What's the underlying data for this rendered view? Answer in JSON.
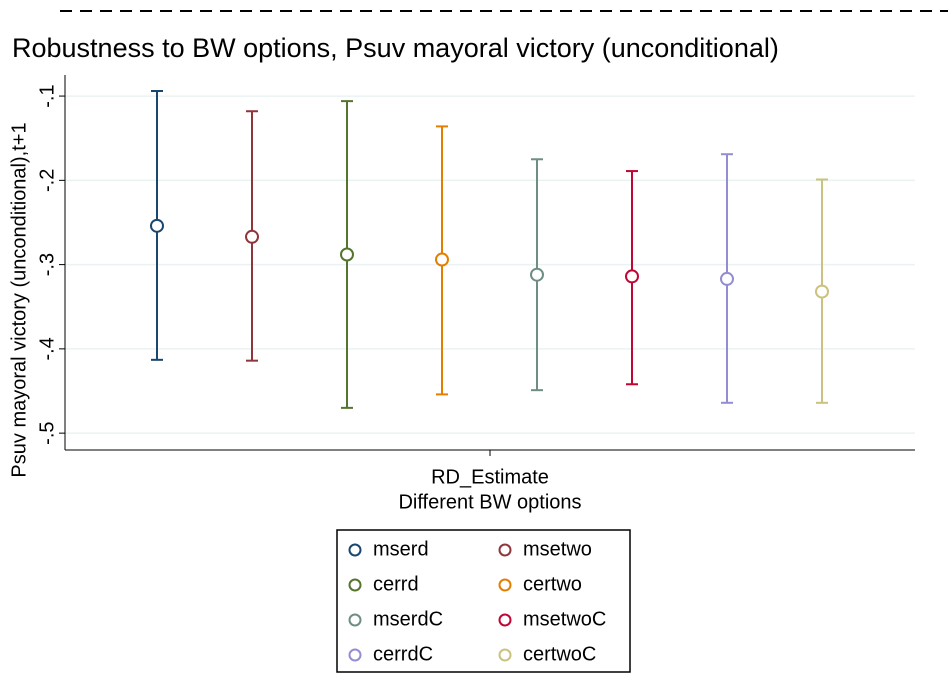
{
  "chart_data": {
    "type": "errorbar",
    "title": "Robustness to BW options, Psuv mayoral victory (unconditional)",
    "ylabel": "Psuv mayoral victory (unconditional),t+1",
    "xlabel": "Different BW options",
    "categories": [
      "RD_Estimate"
    ],
    "ylim": [
      -0.52,
      -0.075
    ],
    "yticks": [
      {
        "value": -0.1,
        "label": "-.1"
      },
      {
        "value": -0.2,
        "label": "-.2"
      },
      {
        "value": -0.3,
        "label": "-.3"
      },
      {
        "value": -0.4,
        "label": "-.4"
      },
      {
        "value": -0.5,
        "label": "-.5"
      }
    ],
    "grid": true,
    "series": [
      {
        "name": "mserd",
        "color": "#1a476f",
        "values": [
          -0.254
        ],
        "lower": [
          -0.413
        ],
        "upper": [
          -0.094
        ]
      },
      {
        "name": "msetwo",
        "color": "#90353b",
        "values": [
          -0.267
        ],
        "lower": [
          -0.414
        ],
        "upper": [
          -0.118
        ]
      },
      {
        "name": "cerrd",
        "color": "#55752f",
        "values": [
          -0.288
        ],
        "lower": [
          -0.47
        ],
        "upper": [
          -0.106
        ]
      },
      {
        "name": "certwo",
        "color": "#e37e00",
        "values": [
          -0.294
        ],
        "lower": [
          -0.454
        ],
        "upper": [
          -0.136
        ]
      },
      {
        "name": "mserdC",
        "color": "#6e8e84",
        "values": [
          -0.312
        ],
        "lower": [
          -0.449
        ],
        "upper": [
          -0.175
        ]
      },
      {
        "name": "msetwoC",
        "color": "#c10534",
        "values": [
          -0.314
        ],
        "lower": [
          -0.442
        ],
        "upper": [
          -0.189
        ]
      },
      {
        "name": "cerrdC",
        "color": "#938dd2",
        "values": [
          -0.317
        ],
        "lower": [
          -0.464
        ],
        "upper": [
          -0.169
        ]
      },
      {
        "name": "certwoC",
        "color": "#cac27e",
        "values": [
          -0.332
        ],
        "lower": [
          -0.464
        ],
        "upper": [
          -0.199
        ]
      }
    ]
  }
}
